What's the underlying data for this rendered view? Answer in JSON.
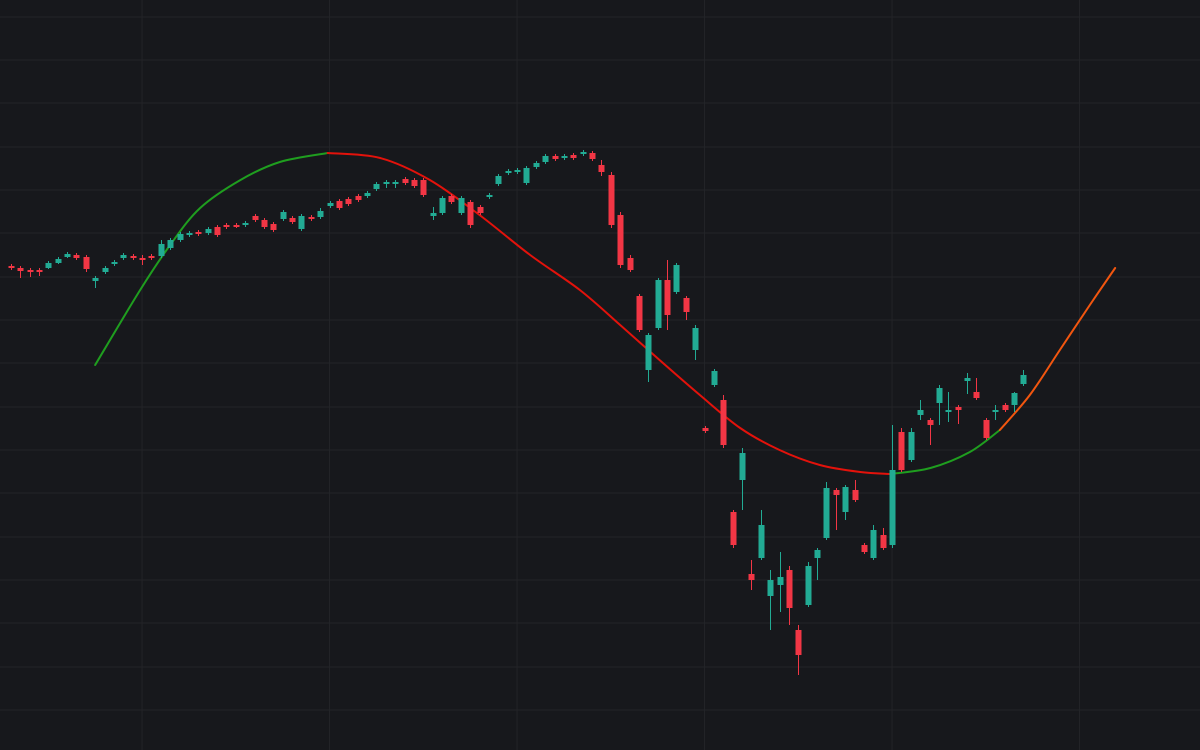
{
  "chart_data": {
    "type": "candlestick",
    "up_color": "#22ab94",
    "down_color": "#f23645",
    "grid": true,
    "xlim": [
      -0.15,
      127.85
    ],
    "ylim": [
      0,
      750
    ],
    "xticks": [
      15,
      35,
      55,
      75,
      95,
      115
    ],
    "yticks": [
      40,
      83,
      127,
      170,
      213,
      257,
      300,
      343,
      387,
      430,
      473,
      517,
      560,
      603,
      647,
      690,
      733
    ],
    "x": [
      1,
      2,
      3,
      4,
      5,
      6,
      7,
      8,
      9,
      10,
      11,
      12,
      13,
      14,
      15,
      16,
      17,
      18,
      19,
      20,
      21,
      22,
      23,
      24,
      25,
      26,
      27,
      28,
      29,
      30,
      31,
      32,
      33,
      34,
      35,
      36,
      37,
      38,
      39,
      40,
      41,
      42,
      43,
      44,
      45,
      46,
      47,
      48,
      49,
      50,
      51,
      52,
      53,
      54,
      55,
      56,
      57,
      58,
      59,
      60,
      61,
      62,
      63,
      64,
      65,
      66,
      67,
      68,
      69,
      70,
      71,
      72,
      73,
      74,
      75,
      76,
      77,
      78,
      79,
      80,
      81,
      82,
      83,
      84,
      85,
      86,
      87,
      88,
      89,
      90,
      91,
      92,
      93,
      94,
      95,
      96,
      97,
      98,
      99,
      100,
      101,
      102,
      103,
      104,
      105,
      106,
      107,
      108,
      109
    ],
    "open": [
      484,
      482,
      480,
      480,
      482,
      487,
      493,
      495,
      493,
      469,
      478,
      486,
      492,
      494,
      492,
      494,
      494,
      502,
      510,
      515,
      518,
      517,
      523,
      525,
      525,
      525,
      534,
      530,
      526,
      531,
      532,
      521,
      533,
      533,
      544,
      549,
      551,
      554,
      554,
      561,
      566,
      566,
      571,
      570,
      570,
      534,
      537,
      554,
      537,
      548,
      543,
      553,
      566,
      577,
      578,
      567,
      583,
      588,
      594,
      592,
      595,
      596,
      597,
      585,
      575,
      535,
      492,
      454,
      380,
      422,
      470,
      458,
      452,
      400,
      322,
      365,
      350,
      238,
      270,
      176,
      192,
      154,
      165,
      180,
      120,
      145,
      192,
      212,
      260,
      238,
      260,
      205,
      192,
      215,
      205,
      318,
      290,
      335,
      330,
      347,
      338,
      343,
      369,
      358,
      330,
      338,
      345,
      345,
      366
    ],
    "high": [
      486,
      484,
      482,
      482,
      489,
      493,
      498,
      497,
      495,
      474,
      484,
      490,
      497,
      496,
      495,
      496,
      510,
      512,
      518,
      519,
      520,
      523,
      525,
      527,
      527,
      529,
      536,
      532,
      528,
      540,
      534,
      536,
      535,
      542,
      549,
      551,
      553,
      556,
      559,
      568,
      570,
      570,
      573,
      572,
      572,
      543,
      554,
      556,
      554,
      550,
      545,
      557,
      576,
      581,
      582,
      584,
      589,
      596,
      596,
      596,
      597,
      600,
      599,
      590,
      578,
      538,
      495,
      456,
      417,
      472,
      490,
      487,
      454,
      425,
      324,
      381,
      355,
      240,
      302,
      190,
      240,
      180,
      198,
      184,
      125,
      188,
      202,
      268,
      262,
      265,
      270,
      207,
      225,
      222,
      325,
      322,
      322,
      350,
      332,
      365,
      358,
      345,
      377,
      372,
      332,
      345,
      347,
      358,
      380
    ],
    "low": [
      480,
      472,
      473,
      474,
      481,
      486,
      492,
      490,
      478,
      462,
      476,
      484,
      490,
      490,
      485,
      490,
      492,
      500,
      508,
      513,
      514,
      515,
      513,
      521,
      522,
      523,
      528,
      521,
      518,
      529,
      526,
      519,
      529,
      531,
      542,
      540,
      544,
      548,
      552,
      559,
      562,
      562,
      565,
      562,
      553,
      530,
      535,
      546,
      535,
      522,
      535,
      551,
      564,
      575,
      576,
      565,
      581,
      586,
      589,
      590,
      590,
      594,
      589,
      574,
      522,
      482,
      478,
      418,
      368,
      420,
      420,
      456,
      430,
      390,
      317,
      363,
      302,
      202,
      240,
      160,
      190,
      120,
      138,
      125,
      75,
      143,
      170,
      210,
      220,
      230,
      248,
      196,
      190,
      200,
      202,
      278,
      288,
      330,
      305,
      325,
      328,
      326,
      356,
      350,
      310,
      330,
      338,
      338,
      364
    ],
    "close": [
      482,
      479,
      478,
      478,
      487,
      491,
      496,
      492,
      481,
      472,
      482,
      488,
      495,
      492,
      490,
      492,
      506,
      510,
      516,
      517,
      516,
      521,
      515,
      523,
      523,
      527,
      530,
      523,
      520,
      538,
      528,
      534,
      531,
      539,
      547,
      542,
      546,
      550,
      557,
      566,
      568,
      568,
      567,
      564,
      555,
      537,
      552,
      548,
      552,
      525,
      537,
      555,
      574,
      579,
      580,
      582,
      587,
      594,
      591,
      594,
      592,
      598,
      591,
      578,
      525,
      485,
      480,
      420,
      415,
      470,
      435,
      485,
      438,
      422,
      319,
      379,
      305,
      205,
      297,
      170,
      225,
      170,
      173,
      142,
      95,
      184,
      200,
      262,
      255,
      263,
      250,
      198,
      220,
      202,
      280,
      280,
      318,
      340,
      325,
      362,
      340,
      340,
      372,
      352,
      312,
      340,
      340,
      357,
      375
    ],
    "lines": [
      {
        "color": "#1f9e1f",
        "x": [
          10.0,
          14.8,
          18.0,
          21.2,
          25.5,
          29.7,
          34.8
        ],
        "values": [
          385,
          460,
          505,
          542,
          570,
          588,
          597
        ]
      },
      {
        "color": "#e3120b",
        "x": [
          34.8,
          40.4,
          45.7,
          51.0,
          56.4,
          61.7,
          66.0,
          70.2,
          74.5,
          78.8,
          83.0,
          87.3,
          91.6,
          94.8
        ],
        "values": [
          597,
          592,
          570,
          535,
          495,
          460,
          425,
          390,
          355,
          322,
          300,
          285,
          278,
          276
        ]
      },
      {
        "color": "#1f9e1f",
        "x": [
          94.8,
          99.1,
          103.3,
          106.5
        ],
        "values": [
          276,
          282,
          298,
          320
        ]
      },
      {
        "color": "#f2560f",
        "x": [
          106.5,
          109.7,
          112.9,
          116.1,
          118.8
        ],
        "values": [
          320,
          355,
          400,
          445,
          482
        ]
      }
    ]
  }
}
